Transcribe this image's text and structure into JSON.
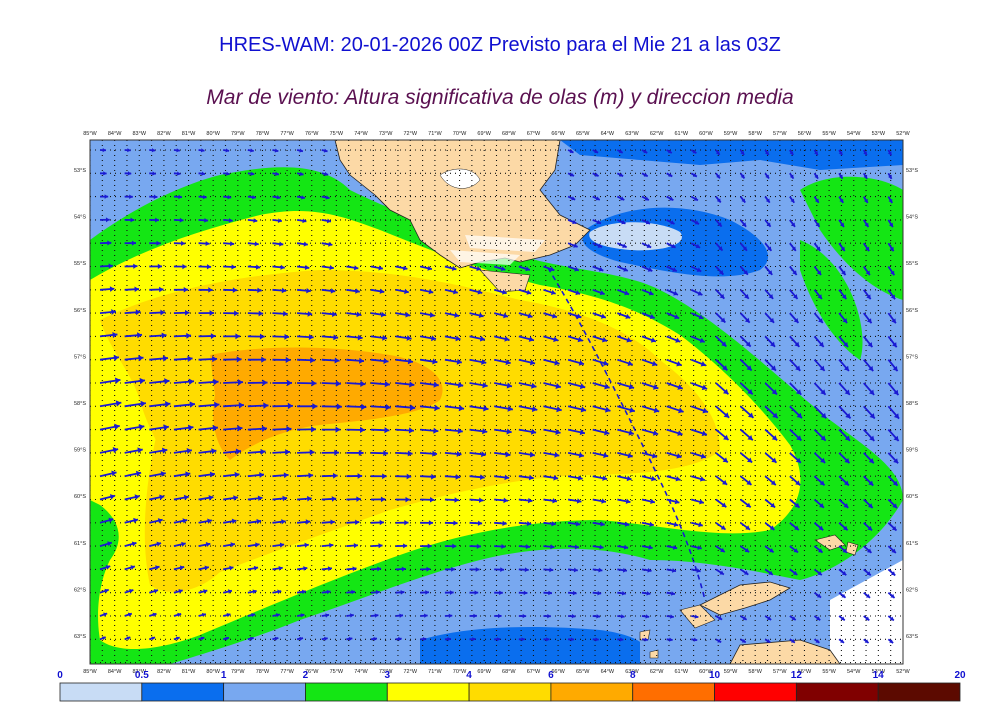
{
  "header": {
    "title": "HRES-WAM: 20-01-2026 00Z Previsto para el Mie 21 a las 03Z",
    "subtitle": "Mar de viento: Altura significativa de olas (m) y direccion media"
  },
  "map": {
    "lon_labels": [
      "85°W",
      "84°W",
      "83°W",
      "82°W",
      "81°W",
      "80°W",
      "79°W",
      "78°W",
      "77°W",
      "76°W",
      "75°W",
      "74°W",
      "73°W",
      "72°W",
      "71°W",
      "70°W",
      "69°W",
      "68°W",
      "67°W",
      "66°W",
      "65°W",
      "64°W",
      "63°W",
      "62°W",
      "61°W",
      "60°W",
      "59°W",
      "58°W",
      "57°W",
      "56°W",
      "55°W",
      "54°W",
      "53°W",
      "52°W"
    ],
    "lat_labels": [
      "53°S",
      "54°S",
      "55°S",
      "56°S",
      "57°S",
      "58°S",
      "59°S",
      "60°S",
      "61°S",
      "62°S",
      "63°S"
    ],
    "arrow_color": "#1a1ad2"
  },
  "legend": {
    "bounds": [
      "0",
      "0.5",
      "1",
      "2",
      "3",
      "4",
      "6",
      "8",
      "10",
      "12",
      "14",
      "20"
    ],
    "colors": [
      "#c8dcf5",
      "#0a6eee",
      "#78a8f0",
      "#14e614",
      "#ffff00",
      "#ffdc00",
      "#ffaa00",
      "#ff6e00",
      "#ff0000",
      "#800000",
      "#5c0a00"
    ]
  }
}
